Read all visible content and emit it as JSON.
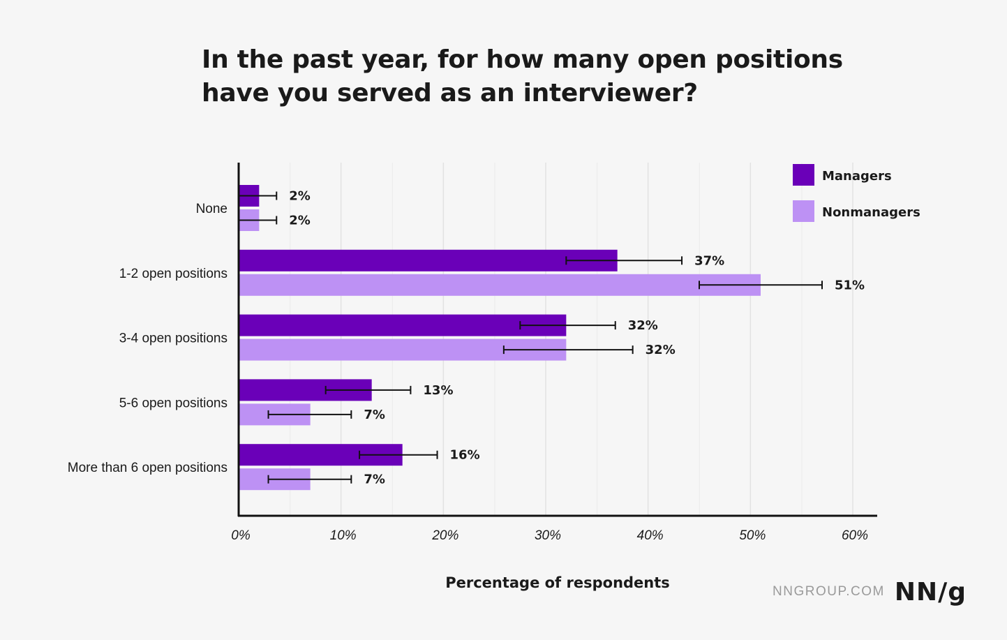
{
  "chart_data": {
    "type": "bar",
    "orientation": "horizontal",
    "title": "In the past year, for how many open positions have you served as an interviewer?",
    "xlabel": "Percentage of respondents",
    "ylabel": "",
    "xlim": [
      0,
      60
    ],
    "x_ticks": [
      "0%",
      "10%",
      "20%",
      "30%",
      "40%",
      "50%",
      "60%"
    ],
    "grid": "vertical",
    "legend_position": "top-right",
    "categories": [
      "None",
      "1-2 open positions",
      "3-4 open positions",
      "5-6 open positions",
      "More than 6 open positions"
    ],
    "series": [
      {
        "name": "Managers",
        "color": "#6a00b8",
        "values": [
          2,
          37,
          32,
          13,
          16
        ],
        "labels": [
          "2%",
          "37%",
          "32%",
          "13%",
          "16%"
        ],
        "error_low": [
          0,
          32,
          27.5,
          8.5,
          11.8
        ],
        "error_high": [
          3.7,
          43.3,
          36.8,
          16.8,
          19.4
        ]
      },
      {
        "name": "Nonmanagers",
        "color": "#bd91f4",
        "values": [
          2,
          51,
          32,
          7,
          7
        ],
        "labels": [
          "2%",
          "51%",
          "32%",
          "7%",
          "7%"
        ],
        "error_low": [
          0,
          45,
          25.9,
          2.9,
          2.9
        ],
        "error_high": [
          3.7,
          57,
          38.5,
          11,
          11
        ]
      }
    ]
  },
  "footer": {
    "site": "NNGROUP.COM",
    "logo": "NN/g"
  }
}
